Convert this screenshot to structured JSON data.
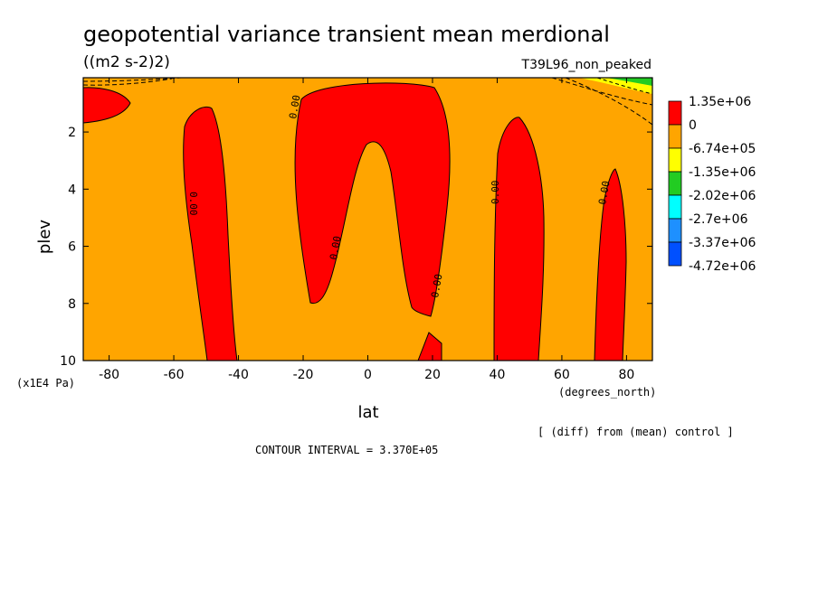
{
  "chart_data": {
    "type": "contour",
    "title": "geopotential variance transient mean merdional",
    "units": "((m2 s-2)2)",
    "run_label": "T39L96_non_peaked",
    "xlabel": "lat",
    "x_units": "(degrees_north)",
    "ylabel": "plev",
    "y_units": "(x1E4 Pa)",
    "xlim": [
      -88,
      88
    ],
    "ylim": [
      10,
      0.1
    ],
    "x_ticks": [
      -80,
      -60,
      -40,
      -20,
      0,
      20,
      40,
      60,
      80
    ],
    "x_tick_labels": [
      "-80",
      "-60",
      "-40",
      "-20",
      "0",
      "20",
      "40",
      "60",
      "80"
    ],
    "y_ticks": [
      2,
      4,
      6,
      8,
      10
    ],
    "y_tick_labels": [
      "2",
      "4",
      "6",
      "8",
      "10"
    ],
    "contour_interval_text": "CONTOUR INTERVAL = 3.370E+05",
    "comparison_note": "[ (diff) from (mean) control ]",
    "contour_line_label": "0.00",
    "legend": [
      {
        "label": "1.35e+06",
        "color": "#ff0000"
      },
      {
        "label": "0",
        "color": "#ffa500"
      },
      {
        "label": "-6.74e+05",
        "color": "#ffff00"
      },
      {
        "label": "-1.35e+06",
        "color": "#22cc22"
      },
      {
        "label": "-2.02e+06",
        "color": "#00ffff"
      },
      {
        "label": "-2.7e+06",
        "color": "#1e90ff"
      },
      {
        "label": "-3.37e+06",
        "color": "#0050ff"
      },
      {
        "label": "-4.72e+06",
        "color": ""
      }
    ],
    "positive_regions": [
      {
        "lat": [
          -88,
          -75
        ],
        "plev": [
          0.2,
          1.7
        ]
      },
      {
        "lat": [
          -62,
          -40
        ],
        "plev": [
          1.2,
          10
        ]
      },
      {
        "lat": [
          -25,
          28
        ],
        "plev": [
          0.1,
          8.5
        ]
      },
      {
        "lat": [
          39,
          55
        ],
        "plev": [
          1.5,
          10
        ]
      },
      {
        "lat": [
          70,
          80
        ],
        "plev": [
          3.3,
          10
        ]
      }
    ]
  }
}
